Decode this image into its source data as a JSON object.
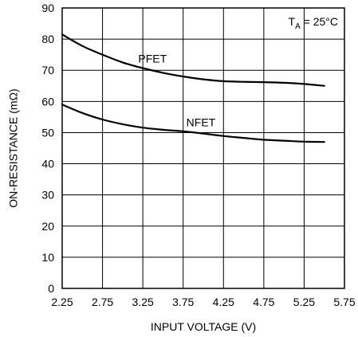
{
  "chart_data": {
    "type": "line",
    "xlabel": "INPUT VOLTAGE (V)",
    "ylabel": "ON-RESISTANCE (mΩ)",
    "xlim": [
      2.25,
      5.75
    ],
    "ylim": [
      0,
      90
    ],
    "x_ticks": [
      "2.25",
      "2.75",
      "3.25",
      "3.75",
      "4.25",
      "4.75",
      "5.25",
      "5.75"
    ],
    "y_ticks": [
      "0",
      "10",
      "20",
      "30",
      "40",
      "50",
      "60",
      "70",
      "80",
      "90"
    ],
    "grid": true,
    "annotation": {
      "text": "T",
      "subscript": "A",
      "suffix": " = 25°C",
      "position": "top-right"
    },
    "series": [
      {
        "name": "PFET",
        "x": [
          2.25,
          2.5,
          2.75,
          3.0,
          3.25,
          3.5,
          3.75,
          4.0,
          4.25,
          4.5,
          4.75,
          5.0,
          5.25,
          5.5
        ],
        "y": [
          81.5,
          77.8,
          75.0,
          72.5,
          70.7,
          69.2,
          68.0,
          67.1,
          66.5,
          66.3,
          66.2,
          66.0,
          65.6,
          65.0
        ]
      },
      {
        "name": "NFET",
        "x": [
          2.25,
          2.5,
          2.75,
          3.0,
          3.25,
          3.5,
          3.75,
          4.0,
          4.25,
          4.5,
          4.75,
          5.0,
          5.25,
          5.5
        ],
        "y": [
          59.0,
          56.3,
          54.2,
          52.7,
          51.6,
          50.9,
          50.4,
          49.7,
          48.9,
          48.3,
          47.7,
          47.4,
          47.1,
          47.0
        ]
      }
    ]
  }
}
